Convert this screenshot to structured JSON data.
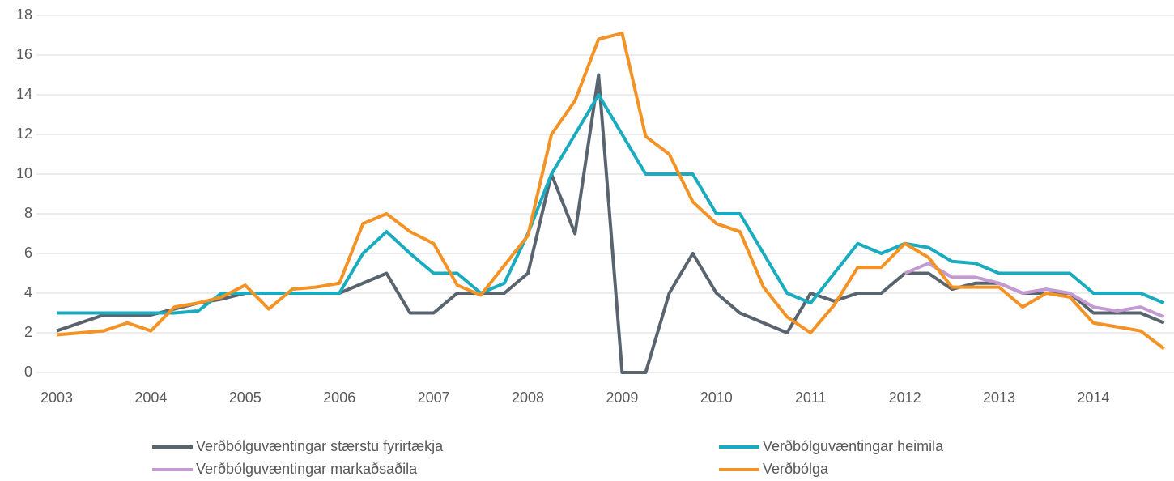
{
  "chart_data": {
    "type": "line",
    "categories": [
      "2003",
      null,
      null,
      null,
      "2004",
      null,
      null,
      null,
      "2005",
      null,
      null,
      null,
      "2006",
      null,
      null,
      null,
      "2007",
      null,
      null,
      null,
      "2008",
      null,
      null,
      null,
      "2009",
      null,
      null,
      null,
      "2010",
      null,
      null,
      null,
      "2011",
      null,
      null,
      null,
      "2012",
      null,
      null,
      null,
      "2013",
      null,
      null,
      null,
      "2014",
      null,
      null,
      null
    ],
    "series": [
      {
        "name": "Verðbólguvæntingar stærstu fyrirtækja",
        "color": "#59646e",
        "values": [
          2.1,
          2.5,
          2.9,
          2.9,
          2.9,
          3.2,
          3.5,
          3.7,
          4.0,
          4.0,
          4.0,
          4.0,
          4.0,
          4.5,
          5.0,
          3.0,
          3.0,
          4.0,
          4.0,
          4.0,
          5.0,
          10,
          7,
          15,
          0,
          0,
          4,
          6,
          4,
          3,
          2.5,
          2.0,
          4.0,
          3.6,
          4.0,
          4.0,
          5.0,
          5.0,
          4.2,
          4.5,
          4.5,
          4.0,
          4.0,
          4.0,
          3.0,
          3.0,
          3.0,
          2.5
        ]
      },
      {
        "name": "Verðbólguvæntingar heimila",
        "color": "#1aabbf",
        "values": [
          3.0,
          3.0,
          3.0,
          3.0,
          3.0,
          3.0,
          3.1,
          4.0,
          4.0,
          4.0,
          4.0,
          4.0,
          4.0,
          6.0,
          7.1,
          6.0,
          5.0,
          5.0,
          4.0,
          4.5,
          7.0,
          10,
          12,
          14,
          12,
          10,
          10,
          10,
          8,
          8,
          6,
          4,
          3.5,
          5,
          6.5,
          6,
          6.5,
          6.3,
          5.6,
          5.5,
          5,
          5,
          5,
          5,
          4,
          4,
          4,
          3.5
        ]
      },
      {
        "name": "Verðbólguvæntingar markaðsaðila",
        "color": "#c49ad2",
        "values": [
          null,
          null,
          null,
          null,
          null,
          null,
          null,
          null,
          null,
          null,
          null,
          null,
          null,
          null,
          null,
          null,
          null,
          null,
          null,
          null,
          null,
          null,
          null,
          null,
          null,
          null,
          null,
          null,
          null,
          null,
          null,
          null,
          null,
          null,
          null,
          null,
          5.0,
          5.5,
          4.8,
          4.8,
          4.5,
          4.0,
          4.2,
          4.0,
          3.3,
          3.1,
          3.3,
          2.8
        ]
      },
      {
        "name": "Verðbólga",
        "color": "#f39325",
        "values": [
          1.9,
          2.0,
          2.1,
          2.5,
          2.1,
          3.3,
          3.5,
          3.8,
          4.4,
          3.2,
          4.2,
          4.3,
          4.5,
          7.5,
          8.0,
          7.1,
          6.5,
          4.4,
          3.9,
          5.4,
          6.9,
          12,
          13.7,
          16.8,
          17.1,
          11.9,
          11,
          8.6,
          7.5,
          7.1,
          4.3,
          2.8,
          2.0,
          3.4,
          5.3,
          5.3,
          6.5,
          5.8,
          4.3,
          4.3,
          4.3,
          3.3,
          4.0,
          3.8,
          2.5,
          2.3,
          2.1,
          1.2
        ]
      }
    ],
    "ylim": [
      0,
      18
    ],
    "yticks": [
      0,
      2,
      4,
      6,
      8,
      10,
      12,
      14,
      16,
      18
    ],
    "grid": true,
    "legend": "bottom"
  }
}
